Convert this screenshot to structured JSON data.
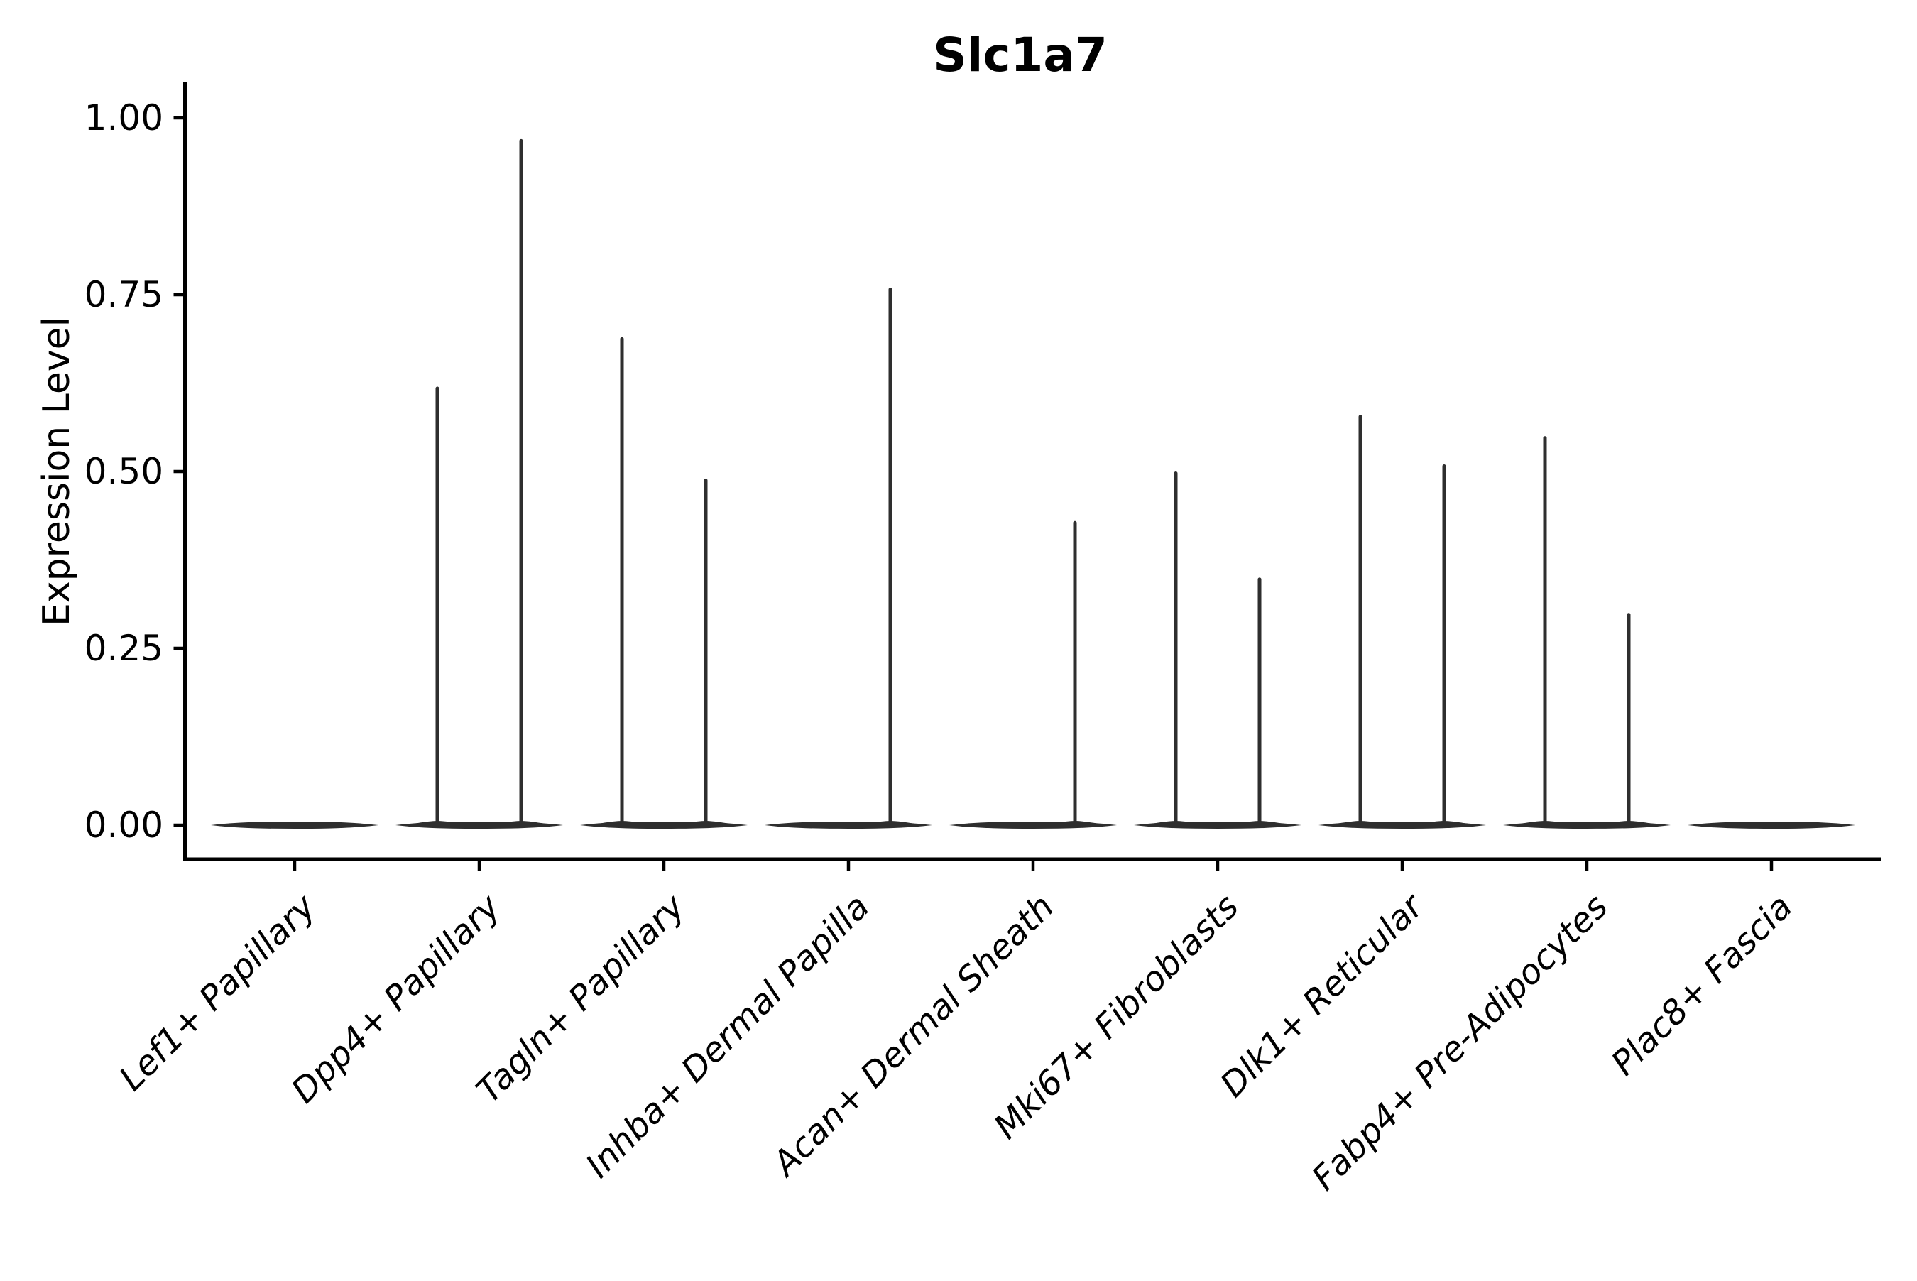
{
  "page": {
    "background": "#ffffff"
  },
  "chart_data": {
    "type": "violin",
    "title": "Slc1a7",
    "xlabel": "",
    "ylabel": "Expression Level",
    "ylim": [
      0,
      1.0
    ],
    "yticks": [
      {
        "value": 0.0,
        "label": "0.00"
      },
      {
        "value": 0.25,
        "label": "0.25"
      },
      {
        "value": 0.5,
        "label": "0.50"
      },
      {
        "value": 0.75,
        "label": "0.75"
      },
      {
        "value": 1.0,
        "label": "1.00"
      }
    ],
    "grid": false,
    "legend": "none",
    "spines": [
      "left",
      "bottom"
    ],
    "x_tick_label_rotation_deg": 45,
    "x_tick_label_style": "italic",
    "axis_color": "#000000",
    "violin_color": "#2e2e2e",
    "baseline_value": 0,
    "categories": [
      "Lef1+ Papillary",
      "Dpp4+ Papillary",
      "Tagln+ Papillary",
      "Inhba+ Dermal Papilla",
      "Acan+ Dermal Sheath",
      "Mki67+ Fibroblasts",
      "Dlk1+ Reticular",
      "Fabp4+ Pre-Adipocytes",
      "Plac8+ Fascia"
    ],
    "series": [
      {
        "name": "sub-violin-left",
        "max_expression": [
          0,
          0.62,
          0.69,
          0,
          0,
          0.5,
          0.58,
          0.55,
          0
        ]
      },
      {
        "name": "sub-violin-right",
        "max_expression": [
          0,
          0.97,
          0.49,
          0.76,
          0.43,
          0.35,
          0.51,
          0.3,
          0
        ]
      }
    ]
  }
}
